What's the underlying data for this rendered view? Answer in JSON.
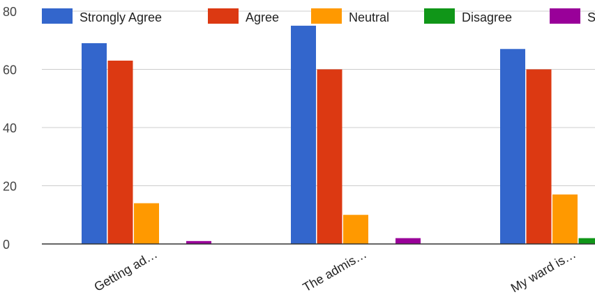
{
  "chart_data": {
    "type": "bar",
    "categories": [
      "Getting ad…",
      "The admis…",
      "My ward is…"
    ],
    "series": [
      {
        "name": "Strongly Agree",
        "color": "#3366cc",
        "values": [
          69,
          75,
          67
        ]
      },
      {
        "name": "Agree",
        "color": "#dc3912",
        "values": [
          63,
          60,
          60
        ]
      },
      {
        "name": "Neutral",
        "color": "#ff9900",
        "values": [
          14,
          10,
          17
        ]
      },
      {
        "name": "Disagree",
        "color": "#109618",
        "values": [
          0,
          0,
          2
        ]
      },
      {
        "name": "S",
        "color": "#990099",
        "values": [
          1,
          2,
          0
        ]
      }
    ],
    "ylim": [
      0,
      80
    ],
    "yticks": [
      0,
      20,
      40,
      60,
      80
    ],
    "grid": true,
    "legend": "top"
  }
}
